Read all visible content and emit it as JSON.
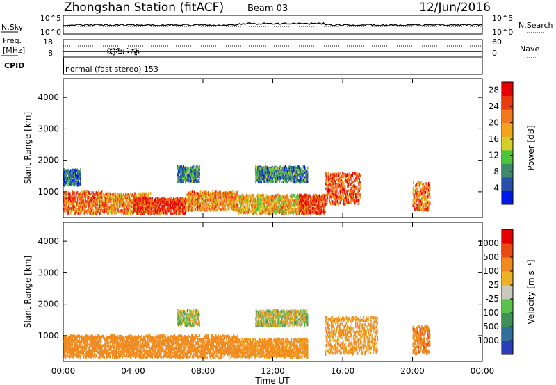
{
  "header": {
    "station": "Zhongshan Station (fitACF)",
    "beam": "Beam 03",
    "date": "12/Jun/2016"
  },
  "panel_nsky": {
    "left_label": "N.Sky",
    "left_ticks": [
      "10^5",
      "10^0"
    ],
    "right_ticks": [
      "10^5",
      "10^0"
    ],
    "right_label": "N.Search"
  },
  "panel_freq": {
    "left_label_top": "Freq.",
    "left_label_unit": "[MHz]",
    "left_ticks": [
      "18",
      "8"
    ],
    "right_ticks": [
      "60",
      "0"
    ],
    "right_label": "Nave"
  },
  "cpid": {
    "label": "CPID",
    "value": "normal (fast stereo) 153"
  },
  "colors": {
    "power": [
      "#0018e6",
      "#2a4fa8",
      "#3f8a6a",
      "#4fc43a",
      "#d6cf2a",
      "#f3a21c",
      "#f27a1c",
      "#ea3a12",
      "#e80000"
    ],
    "velocity": [
      "#2a3fb5",
      "#2f6f9a",
      "#3f8f5a",
      "#58c24a",
      "#c9c9bc",
      "#ecb224",
      "#f18a1c",
      "#ea4a12",
      "#e30000"
    ]
  },
  "chart_data": [
    {
      "type": "heatmap",
      "panel": "power",
      "xlabel": "Time UT",
      "ylabel": "Slant Range [km]",
      "y_ticks": [
        "1000",
        "2000",
        "3000",
        "4000"
      ],
      "x_ticks": [
        "00:00",
        "04:00",
        "08:00",
        "12:00",
        "16:00",
        "20:00",
        "00:00"
      ],
      "ylim": [
        180,
        4600
      ],
      "xlim_hours": [
        0,
        24
      ],
      "colorbar_label": "Power [dB]",
      "colorbar_ticks": [
        "4",
        "8",
        "12",
        "16",
        "20",
        "24",
        "28"
      ],
      "colorbar_range": [
        0,
        30
      ],
      "echo_regions": [
        {
          "t": [
            0,
            2.5
          ],
          "r": [
            300,
            1000
          ],
          "level": 22
        },
        {
          "t": [
            2.5,
            5
          ],
          "r": [
            300,
            950
          ],
          "level": 20
        },
        {
          "t": [
            4,
            7
          ],
          "r": [
            300,
            800
          ],
          "level": 26
        },
        {
          "t": [
            7,
            10
          ],
          "r": [
            400,
            1000
          ],
          "level": 20
        },
        {
          "t": [
            10,
            14
          ],
          "r": [
            300,
            900
          ],
          "level": 18
        },
        {
          "t": [
            13.5,
            15
          ],
          "r": [
            300,
            900
          ],
          "level": 26
        },
        {
          "t": [
            15,
            17
          ],
          "r": [
            600,
            1600
          ],
          "level": 24
        },
        {
          "t": [
            11,
            14
          ],
          "r": [
            1300,
            1800
          ],
          "level": 8
        },
        {
          "t": [
            20,
            21
          ],
          "r": [
            400,
            1300
          ],
          "level": 22
        },
        {
          "t": [
            0,
            1
          ],
          "r": [
            1200,
            1700
          ],
          "level": 6
        },
        {
          "t": [
            6.5,
            7.8
          ],
          "r": [
            1300,
            1800
          ],
          "level": 8
        }
      ]
    },
    {
      "type": "heatmap",
      "panel": "velocity",
      "xlabel": "Time UT",
      "ylabel": "Slant Range [km]",
      "y_ticks": [
        "1000",
        "2000",
        "3000",
        "4000"
      ],
      "x_ticks": [
        "00:00",
        "04:00",
        "08:00",
        "12:00",
        "16:00",
        "20:00",
        "00:00"
      ],
      "ylim": [
        180,
        4600
      ],
      "xlim_hours": [
        0,
        24
      ],
      "colorbar_label": "Velocity [m s⁻¹]",
      "colorbar_ticks": [
        "1000",
        "500",
        "100",
        "25",
        "-25",
        "-100",
        "-500",
        "-1000"
      ],
      "echo_regions": [
        {
          "t": [
            0,
            10
          ],
          "r": [
            300,
            1000
          ],
          "level": -300
        },
        {
          "t": [
            10,
            14
          ],
          "r": [
            300,
            900
          ],
          "level": -200
        },
        {
          "t": [
            11,
            14
          ],
          "r": [
            1300,
            1800
          ],
          "level": 0
        },
        {
          "t": [
            15,
            18
          ],
          "r": [
            400,
            1600
          ],
          "level": -150
        },
        {
          "t": [
            20,
            21
          ],
          "r": [
            400,
            1300
          ],
          "level": -400
        },
        {
          "t": [
            6.5,
            7.8
          ],
          "r": [
            1300,
            1800
          ],
          "level": 0
        }
      ]
    }
  ]
}
